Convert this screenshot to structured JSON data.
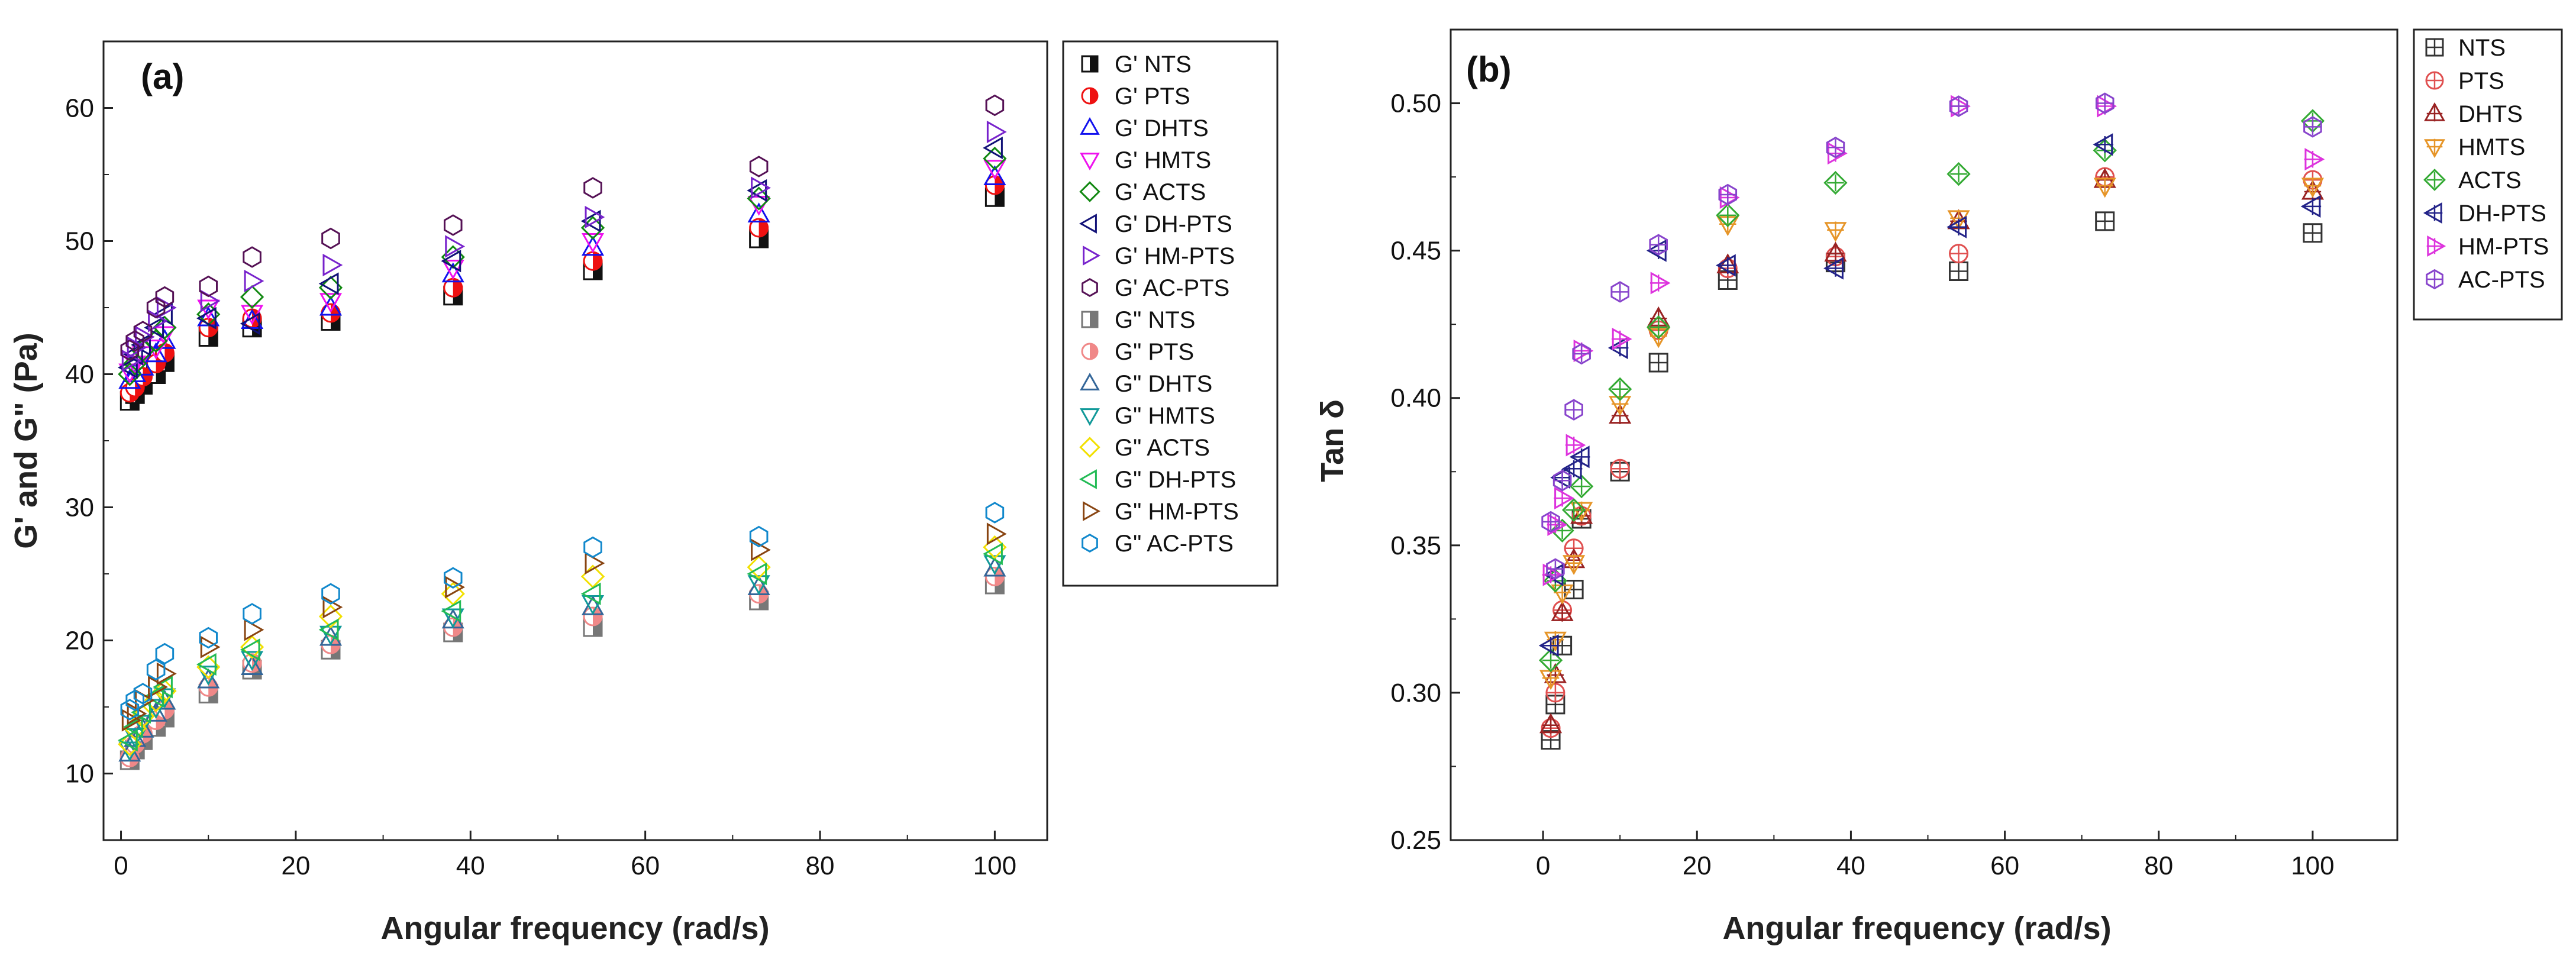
{
  "chart_data": [
    {
      "panel": "(a)",
      "type": "scatter",
      "xlabel": "Angular frequency (rad/s)",
      "ylabel": "G' and G\" (Pa)",
      "xlim": [
        -2,
        106
      ],
      "ylim": [
        5,
        65
      ],
      "xticks": [
        0,
        20,
        40,
        60,
        80,
        100
      ],
      "yticks": [
        10,
        20,
        30,
        40,
        50,
        60
      ],
      "legend_position": "outside-right",
      "x": [
        1.0,
        1.6,
        2.5,
        4.0,
        5.0,
        10.0,
        15.0,
        24.0,
        38.0,
        54.0,
        73.0,
        100.0
      ],
      "series": [
        {
          "name": "G' NTS",
          "color": "#111111",
          "marker": "square-half",
          "values": [
            38.0,
            38.5,
            39.2,
            40.0,
            40.9,
            42.8,
            43.5,
            44.0,
            45.9,
            47.8,
            50.2,
            53.3
          ]
        },
        {
          "name": "G' PTS",
          "color": "#ee1111",
          "marker": "circle-half",
          "values": [
            38.6,
            39.0,
            39.8,
            40.8,
            41.6,
            43.5,
            44.2,
            44.6,
            46.5,
            48.5,
            51.0,
            54.2
          ]
        },
        {
          "name": "G' DHTS",
          "color": "#1111ee",
          "marker": "triangle-up",
          "values": [
            39.5,
            40.0,
            40.5,
            41.5,
            42.5,
            44.2,
            44.0,
            45.0,
            47.5,
            49.5,
            52.0,
            54.8
          ]
        },
        {
          "name": "G' HMTS",
          "color": "#ee11ee",
          "marker": "triangle-down",
          "values": [
            40.2,
            40.8,
            41.5,
            42.0,
            43.0,
            45.0,
            44.6,
            45.5,
            48.0,
            50.0,
            52.8,
            55.5
          ]
        },
        {
          "name": "G' ACTS",
          "color": "#118811",
          "marker": "diamond",
          "values": [
            40.0,
            40.8,
            41.8,
            42.5,
            43.5,
            44.5,
            45.8,
            46.5,
            48.8,
            51.0,
            53.2,
            56.2
          ]
        },
        {
          "name": "G' DH-PTS",
          "color": "#111177",
          "marker": "triangle-left",
          "values": [
            40.5,
            41.5,
            42.2,
            43.5,
            44.5,
            44.2,
            43.8,
            46.8,
            48.5,
            51.5,
            53.8,
            57.0
          ]
        },
        {
          "name": "G' HM-PTS",
          "color": "#7722cc",
          "marker": "triangle-right",
          "values": [
            41.0,
            42.0,
            42.8,
            44.0,
            45.0,
            45.5,
            47.0,
            48.2,
            49.6,
            51.8,
            54.0,
            58.2
          ]
        },
        {
          "name": "G' AC-PTS",
          "color": "#551155",
          "marker": "hexagon",
          "values": [
            41.8,
            42.5,
            43.2,
            45.0,
            45.8,
            46.6,
            48.8,
            50.2,
            51.2,
            54.0,
            55.6,
            60.2
          ]
        },
        {
          "name": "G\" NTS",
          "color": "#777777",
          "marker": "square-half",
          "values": [
            11.0,
            11.8,
            12.5,
            13.5,
            14.2,
            16.0,
            17.8,
            19.3,
            20.6,
            21.0,
            23.0,
            24.2
          ]
        },
        {
          "name": "G\" PTS",
          "color": "#f08888",
          "marker": "circle-half",
          "values": [
            11.2,
            12.2,
            13.0,
            14.0,
            14.8,
            16.5,
            18.3,
            19.7,
            21.0,
            21.8,
            23.5,
            24.8
          ]
        },
        {
          "name": "G\" DHTS",
          "color": "#336699",
          "marker": "triangle-up",
          "values": [
            11.5,
            12.6,
            13.3,
            14.5,
            15.4,
            17.0,
            18.0,
            20.2,
            21.5,
            22.5,
            24.0,
            25.4
          ]
        },
        {
          "name": "G\" HMTS",
          "color": "#119999",
          "marker": "triangle-down",
          "values": [
            11.8,
            12.8,
            13.8,
            15.0,
            15.8,
            17.5,
            18.6,
            20.5,
            21.8,
            22.8,
            24.3,
            25.8
          ]
        },
        {
          "name": "G\" ACTS",
          "color": "#f2e000",
          "marker": "diamond",
          "values": [
            12.2,
            13.4,
            14.3,
            15.5,
            16.2,
            18.0,
            19.5,
            21.8,
            23.5,
            24.8,
            25.5,
            27.0
          ]
        },
        {
          "name": "G\" DH-PTS",
          "color": "#22bb55",
          "marker": "triangle-left",
          "values": [
            12.5,
            13.5,
            14.6,
            15.8,
            16.5,
            18.2,
            19.3,
            20.8,
            22.2,
            23.5,
            25.0,
            26.5
          ]
        },
        {
          "name": "G\" HM-PTS",
          "color": "#884411",
          "marker": "triangle-right",
          "values": [
            14.0,
            14.5,
            15.5,
            16.5,
            17.5,
            19.5,
            20.8,
            22.5,
            24.0,
            25.8,
            26.8,
            28.0
          ]
        },
        {
          "name": "G\" AC-PTS",
          "color": "#1188cc",
          "marker": "hexagon",
          "values": [
            14.8,
            15.5,
            16.0,
            17.8,
            19.0,
            20.2,
            22.0,
            23.5,
            24.7,
            27.0,
            27.8,
            29.6
          ]
        }
      ]
    },
    {
      "panel": "(b)",
      "type": "scatter",
      "xlabel": "Angular frequency (rad/s)",
      "ylabel": "Tan δ",
      "xlim": [
        -12,
        111
      ],
      "ylim": [
        0.25,
        0.525
      ],
      "xticks": [
        0,
        20,
        40,
        60,
        80,
        100
      ],
      "yticks": [
        0.25,
        0.3,
        0.35,
        0.4,
        0.45,
        0.5
      ],
      "ytick_labels": [
        "0.25",
        "0.30",
        "0.35",
        "0.40",
        "0.45",
        "0.50"
      ],
      "legend_position": "outside-right",
      "x": [
        1.0,
        1.6,
        2.5,
        4.0,
        5.0,
        10.0,
        15.0,
        24.0,
        38.0,
        54.0,
        73.0,
        100.0
      ],
      "series": [
        {
          "name": "NTS",
          "color": "#333333",
          "marker": "square-plus",
          "values": [
            0.284,
            0.296,
            0.316,
            0.335,
            0.359,
            0.375,
            0.412,
            0.44,
            0.446,
            0.443,
            0.46,
            0.456
          ]
        },
        {
          "name": "PTS",
          "color": "#e05050",
          "marker": "circle-plus",
          "values": [
            0.288,
            0.3,
            0.328,
            0.349,
            0.36,
            0.376,
            0.423,
            0.444,
            0.448,
            0.449,
            0.475,
            0.474
          ]
        },
        {
          "name": "DHTS",
          "color": "#992222",
          "marker": "triangle-plus",
          "values": [
            0.289,
            0.306,
            0.327,
            0.345,
            0.36,
            0.394,
            0.427,
            0.445,
            0.449,
            0.46,
            0.474,
            0.47
          ]
        },
        {
          "name": "HMTS",
          "color": "#e69528",
          "marker": "tridown-plus",
          "values": [
            0.305,
            0.318,
            0.334,
            0.344,
            0.362,
            0.398,
            0.421,
            0.459,
            0.457,
            0.461,
            0.472,
            0.472
          ]
        },
        {
          "name": "ACTS",
          "color": "#33aa33",
          "marker": "diamond-plus",
          "values": [
            0.311,
            0.338,
            0.355,
            0.362,
            0.37,
            0.403,
            0.424,
            0.462,
            0.473,
            0.476,
            0.484,
            0.494
          ]
        },
        {
          "name": "DH-PTS",
          "color": "#222288",
          "marker": "trileft-plus",
          "values": [
            0.316,
            0.34,
            0.373,
            0.376,
            0.38,
            0.417,
            0.45,
            0.445,
            0.444,
            0.458,
            0.486,
            0.465
          ]
        },
        {
          "name": "HM-PTS",
          "color": "#dd33dd",
          "marker": "triright-plus",
          "values": [
            0.34,
            0.357,
            0.366,
            0.384,
            0.416,
            0.42,
            0.439,
            0.468,
            0.483,
            0.499,
            0.499,
            0.481
          ]
        },
        {
          "name": "AC-PTS",
          "color": "#8844cc",
          "marker": "hexagon-plus",
          "values": [
            0.358,
            0.342,
            0.372,
            0.396,
            0.415,
            0.436,
            0.452,
            0.469,
            0.485,
            0.499,
            0.5,
            0.492
          ]
        }
      ]
    }
  ]
}
